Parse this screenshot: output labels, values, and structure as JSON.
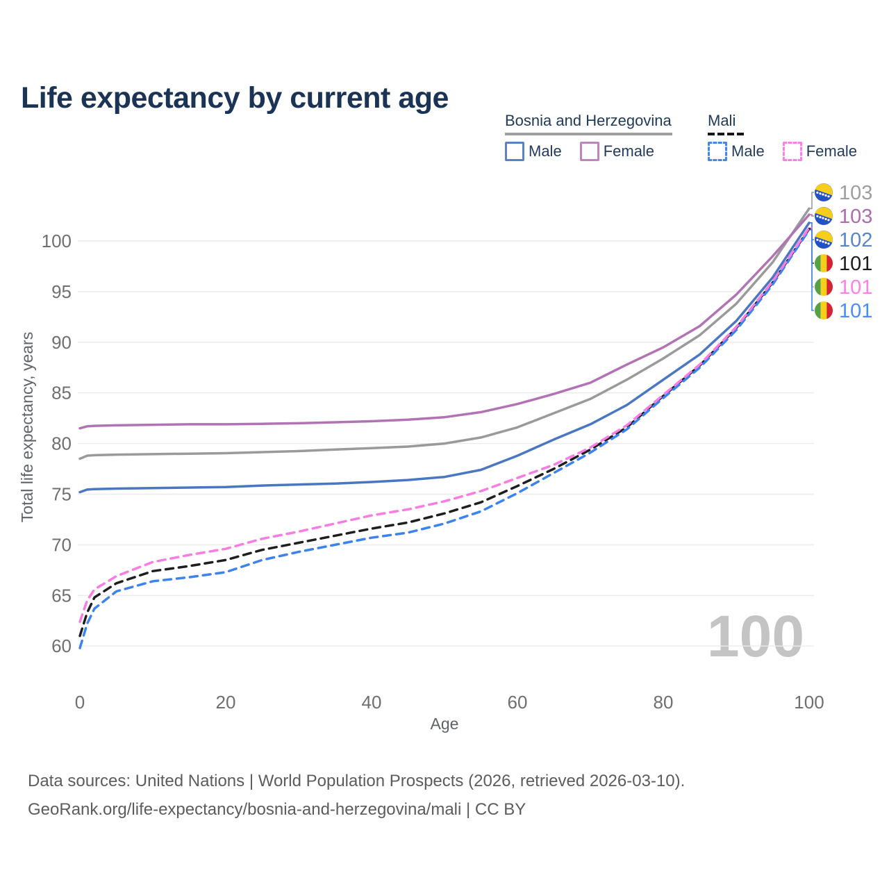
{
  "title": "Life expectancy by current age",
  "legend": {
    "group1": {
      "label": "Bosnia and Herzegovina",
      "line_style": "solid",
      "line_color": "#a0a0a0",
      "items": [
        {
          "label": "Male",
          "swatch_color": "#5b82c4"
        },
        {
          "label": "Female",
          "swatch_color": "#bf84bf"
        }
      ]
    },
    "group2": {
      "label": "Mali",
      "line_style": "dashed",
      "line_color": "#161616",
      "items": [
        {
          "label": "Male",
          "swatch_color": "#4285f4"
        },
        {
          "label": "Female",
          "swatch_color": "#ff7ee8"
        }
      ]
    }
  },
  "watermark": "100",
  "footer": {
    "line1": "Data sources: United Nations | World Population Prospects (2026, retrieved 2026-03-10).",
    "line2": "GeoRank.org/life-expectancy/bosnia-and-herzegovina/mali | CC BY"
  },
  "chart_data": {
    "type": "line",
    "title": "Life expectancy by current age",
    "xlabel": "Age",
    "ylabel": "Total life expectancy, years",
    "xlim": [
      0,
      100
    ],
    "ylim": [
      58.5,
      104.5
    ],
    "xticks": [
      0,
      20,
      40,
      60,
      80,
      100
    ],
    "yticks": [
      60,
      65,
      70,
      75,
      80,
      85,
      90,
      95,
      100
    ],
    "grid": "horizontal",
    "legend_position": "top-right",
    "x": [
      0,
      1,
      2,
      5,
      10,
      15,
      20,
      25,
      30,
      35,
      40,
      45,
      50,
      55,
      60,
      65,
      70,
      75,
      80,
      85,
      90,
      95,
      100
    ],
    "series": [
      {
        "country": "Bosnia and Herzegovina",
        "sex": "Both sexes",
        "dash": false,
        "color": "#9a9a9a",
        "label_color": "#9e9e9e",
        "end_label": "103",
        "flag": "bosnia",
        "values": [
          78.5,
          78.8,
          78.85,
          78.9,
          78.95,
          79.0,
          79.05,
          79.15,
          79.25,
          79.4,
          79.55,
          79.7,
          80.0,
          80.6,
          81.6,
          83.0,
          84.4,
          86.3,
          88.4,
          90.7,
          93.8,
          97.9,
          103.2
        ]
      },
      {
        "country": "Bosnia and Herzegovina",
        "sex": "Female",
        "dash": false,
        "color": "#b173b4",
        "label_color": "#ae6cae",
        "end_label": "103",
        "flag": "bosnia",
        "values": [
          81.5,
          81.7,
          81.75,
          81.8,
          81.85,
          81.9,
          81.9,
          81.95,
          82.0,
          82.1,
          82.2,
          82.35,
          82.6,
          83.1,
          83.9,
          84.9,
          86.0,
          87.8,
          89.5,
          91.6,
          94.7,
          98.5,
          102.6
        ]
      },
      {
        "country": "Bosnia and Herzegovina",
        "sex": "Male",
        "dash": false,
        "color": "#4a77c2",
        "label_color": "#5a84c8",
        "end_label": "102",
        "flag": "bosnia",
        "values": [
          75.2,
          75.45,
          75.5,
          75.55,
          75.6,
          75.65,
          75.7,
          75.85,
          75.95,
          76.05,
          76.2,
          76.4,
          76.7,
          77.4,
          78.8,
          80.4,
          81.9,
          83.8,
          86.3,
          88.8,
          92.1,
          96.4,
          101.8
        ]
      },
      {
        "country": "Mali",
        "sex": "Both sexes",
        "dash": true,
        "color": "#1e1e1e",
        "label_color": "#1c1c1c",
        "end_label": "101",
        "flag": "mali",
        "values": [
          61.0,
          63.3,
          64.8,
          66.2,
          67.4,
          67.9,
          68.5,
          69.5,
          70.2,
          70.9,
          71.6,
          72.2,
          73.1,
          74.2,
          75.8,
          77.5,
          79.4,
          81.6,
          84.7,
          87.7,
          91.4,
          95.9,
          101.2
        ]
      },
      {
        "country": "Mali",
        "sex": "Female",
        "dash": true,
        "color": "#f97ce3",
        "label_color": "#ff80e5",
        "end_label": "101",
        "flag": "mali",
        "values": [
          62.4,
          64.5,
          65.6,
          66.9,
          68.3,
          69.0,
          69.6,
          70.6,
          71.3,
          72.1,
          72.9,
          73.5,
          74.3,
          75.3,
          76.6,
          77.9,
          79.6,
          81.8,
          84.8,
          87.8,
          91.5,
          96.0,
          101.3
        ]
      },
      {
        "country": "Mali",
        "sex": "Male",
        "dash": true,
        "color": "#3d83f0",
        "label_color": "#4a8cff",
        "end_label": "101",
        "flag": "mali",
        "values": [
          59.8,
          62.2,
          63.7,
          65.4,
          66.4,
          66.8,
          67.3,
          68.5,
          69.3,
          70.0,
          70.7,
          71.2,
          72.1,
          73.3,
          75.1,
          77.1,
          79.1,
          81.4,
          84.5,
          87.5,
          91.2,
          95.7,
          101.1
        ]
      }
    ],
    "flag_colors": {
      "bosnia": {
        "field": "#2451c4",
        "triangle": "#f7ce1a",
        "stars": "#ffffff"
      },
      "mali": {
        "green": "#57a044",
        "yellow": "#f7cf1b",
        "red": "#d62231"
      }
    },
    "axis_text_color": "#6f6f6f",
    "grid_color": "#ebebeb",
    "watermark_color": "#c4c4c4"
  }
}
